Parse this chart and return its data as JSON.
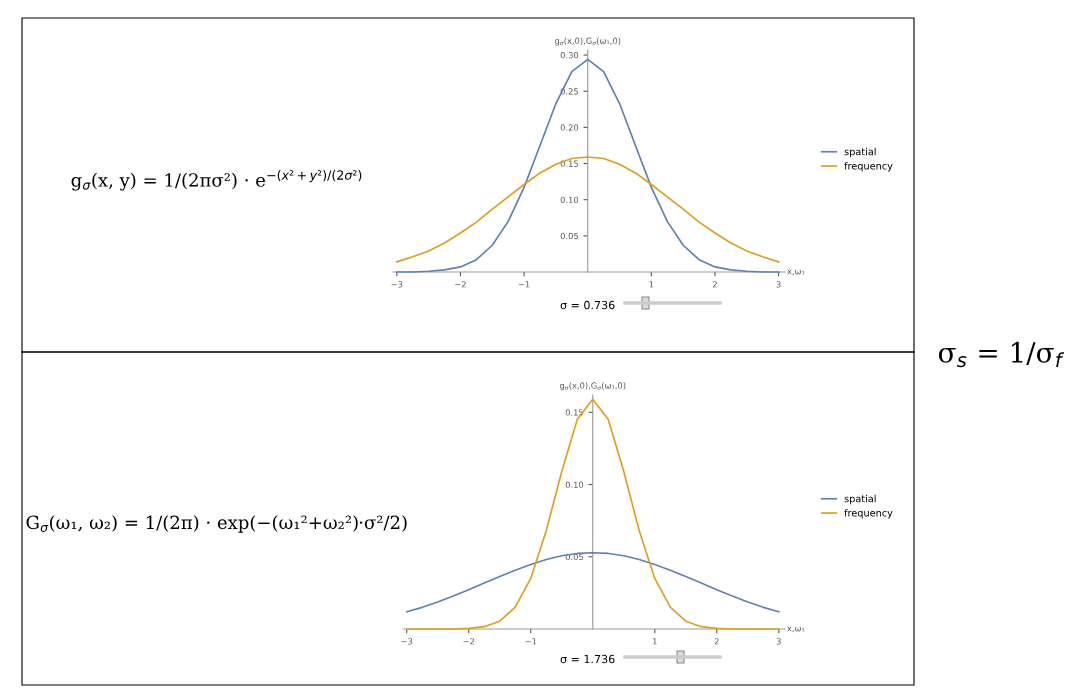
{
  "chart_data": [
    {
      "type": "line",
      "ylabel": "g$_{σ}$(x,0),G$_{σ}$(ω₁,0)",
      "xlabel": "x,ω₁",
      "x": [
        -3,
        -2.75,
        -2.5,
        -2.25,
        -2,
        -1.75,
        -1.5,
        -1.25,
        -1,
        -0.75,
        -0.5,
        -0.25,
        0,
        0.25,
        0.5,
        0.75,
        1,
        1.25,
        1.5,
        1.75,
        2,
        2.25,
        2.5,
        2.75,
        3
      ],
      "series": [
        {
          "name": "spatial",
          "color": "#5e81b5",
          "values": [
            0.0,
            0.0,
            0.001,
            0.003,
            0.007,
            0.017,
            0.037,
            0.07,
            0.117,
            0.175,
            0.233,
            0.277,
            0.294,
            0.277,
            0.233,
            0.175,
            0.117,
            0.07,
            0.037,
            0.017,
            0.007,
            0.003,
            0.001,
            0.0,
            0.0
          ]
        },
        {
          "name": "frequency",
          "color": "#e19c24",
          "values": [
            0.014,
            0.021,
            0.029,
            0.04,
            0.054,
            0.069,
            0.087,
            0.104,
            0.121,
            0.137,
            0.149,
            0.157,
            0.159,
            0.157,
            0.149,
            0.137,
            0.121,
            0.104,
            0.087,
            0.069,
            0.054,
            0.04,
            0.029,
            0.021,
            0.014
          ]
        }
      ],
      "xlim": [
        -3.06,
        3.1
      ],
      "ylim": [
        0,
        0.307
      ],
      "xticks": [
        {
          "value": -3,
          "label": "−3"
        },
        {
          "value": -2,
          "label": "−2"
        },
        {
          "value": -1,
          "label": "−1"
        },
        1,
        2,
        3
      ],
      "yticks": [
        0.05,
        {
          "value": 0.1,
          "label": "0.10"
        },
        0.15,
        {
          "value": 0.2,
          "label": "0.20"
        },
        0.25,
        {
          "value": 0.3,
          "label": "0.30"
        }
      ],
      "legend": "right",
      "annotations": [
        "g$_{σ}$(x, y) = 1/(2πσ²) · e$^{−(x²+y²)/(2σ²)}$",
        "σ = 0.736",
        "σ$_{s}$ = 1/σ$_{f}$"
      ]
    },
    {
      "type": "line",
      "ylabel": "g$_{σ}$(x,0),G$_{σ}$(ω₁,0)",
      "xlabel": "x,ω₁",
      "x": [
        -3,
        -2.75,
        -2.5,
        -2.25,
        -2,
        -1.75,
        -1.5,
        -1.25,
        -1,
        -0.75,
        -0.5,
        -0.25,
        0,
        0.25,
        0.5,
        0.75,
        1,
        1.25,
        1.5,
        1.75,
        2,
        2.25,
        2.5,
        2.75,
        3
      ],
      "series": [
        {
          "name": "spatial",
          "color": "#5e81b5",
          "values": [
            0.0119,
            0.015,
            0.0187,
            0.0228,
            0.0272,
            0.0318,
            0.0363,
            0.0407,
            0.0447,
            0.0481,
            0.0507,
            0.0523,
            0.0528,
            0.0523,
            0.0507,
            0.0481,
            0.0447,
            0.0407,
            0.0363,
            0.0318,
            0.0272,
            0.0228,
            0.0187,
            0.015,
            0.0119
          ]
        },
        {
          "name": "frequency",
          "color": "#e19c24",
          "values": [
            0.0,
            0.0,
            0.0,
            0.0,
            0.0004,
            0.0016,
            0.0054,
            0.0151,
            0.035,
            0.068,
            0.109,
            0.145,
            0.159,
            0.145,
            0.109,
            0.068,
            0.035,
            0.0151,
            0.0054,
            0.0016,
            0.0004,
            0.0,
            0.0,
            0.0,
            0.0
          ]
        }
      ],
      "xlim": [
        -3.06,
        3.1
      ],
      "ylim": [
        0,
        0.162
      ],
      "xticks": [
        {
          "value": -3,
          "label": "−3"
        },
        {
          "value": -2,
          "label": "−2"
        },
        {
          "value": -1,
          "label": "−1"
        },
        1,
        2,
        3
      ],
      "yticks": [
        0.05,
        {
          "value": 0.1,
          "label": "0.10"
        },
        0.15
      ],
      "legend": "right",
      "annotations": [
        "G$_{σ}$(ω₁, ω₂) = 1/(2π) · exp(−(ω₁²+ω₂²)·σ²/2)",
        "σ = 1.736"
      ]
    }
  ]
}
